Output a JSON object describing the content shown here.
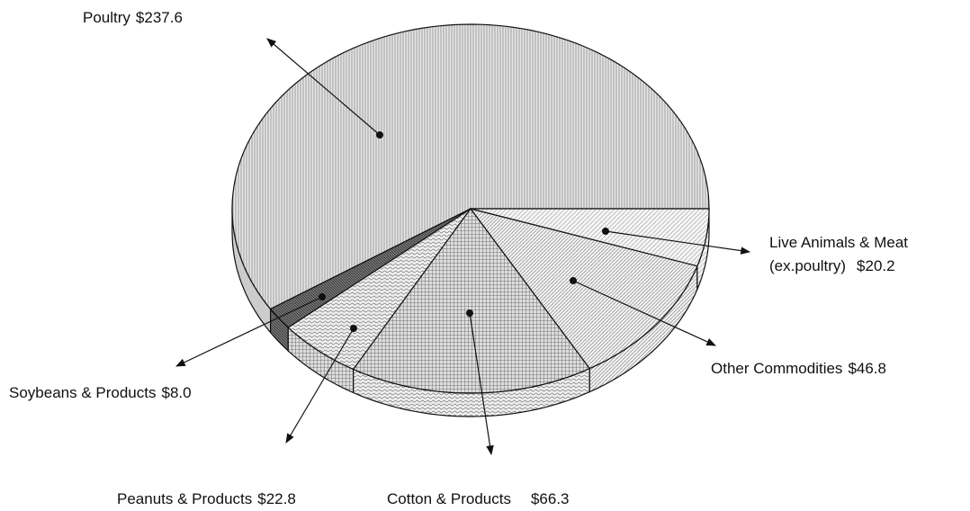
{
  "chart_data": {
    "type": "pie3d",
    "categories": [
      "Poultry",
      "Soybeans & Products",
      "Peanuts & Products",
      "Cotton & Products",
      "Other Commodities",
      "Live Animals & Meat (ex.poultry)"
    ],
    "values": [
      237.6,
      8.0,
      22.8,
      66.3,
      46.8,
      20.2
    ],
    "value_labels": [
      "$237.6",
      "$8.0",
      "$22.8",
      "$66.3",
      "$46.8",
      "$20.2"
    ]
  }
}
